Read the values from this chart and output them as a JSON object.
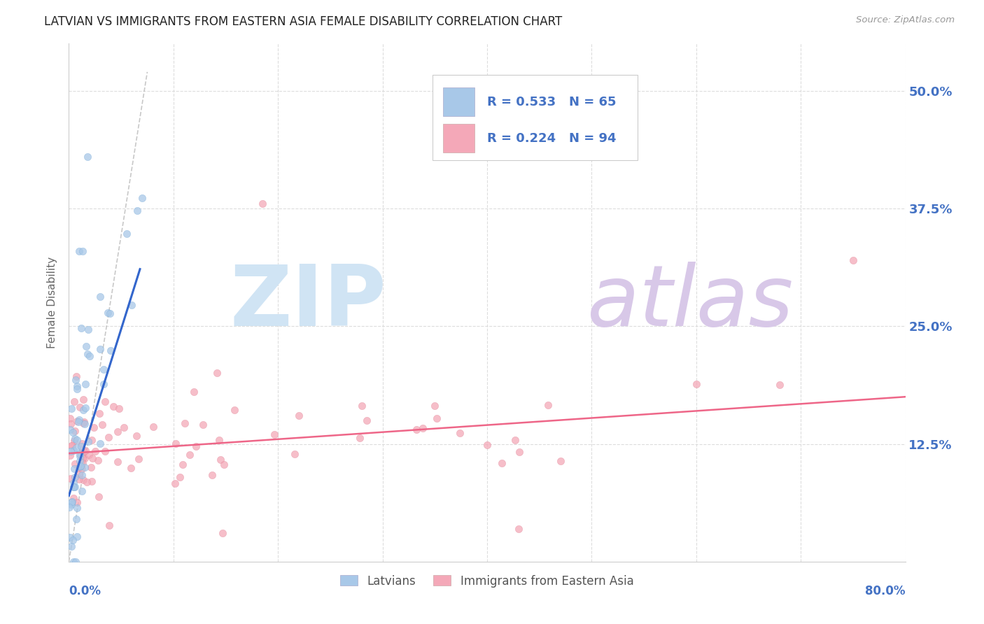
{
  "title": "LATVIAN VS IMMIGRANTS FROM EASTERN ASIA FEMALE DISABILITY CORRELATION CHART",
  "source": "Source: ZipAtlas.com",
  "ylabel": "Female Disability",
  "ytick_labels": [
    "",
    "12.5%",
    "25.0%",
    "37.5%",
    "50.0%"
  ],
  "xlim": [
    0.0,
    0.8
  ],
  "ylim": [
    0.0,
    0.55
  ],
  "legend_blue_R": "R = 0.533",
  "legend_blue_N": "N = 65",
  "legend_pink_R": "R = 0.224",
  "legend_pink_N": "N = 94",
  "legend_label_blue": "Latvians",
  "legend_label_pink": "Immigrants from Eastern Asia",
  "blue_color": "#a8c8e8",
  "pink_color": "#f4a8b8",
  "blue_line_color": "#3366cc",
  "pink_line_color": "#ee6688",
  "dash_line_color": "#bbbbbb",
  "title_color": "#222222",
  "axis_label_color": "#4472c4",
  "n_color": "#44bb44",
  "grid_color": "#dddddd",
  "watermark_zip_color": "#d0e4f4",
  "watermark_atlas_color": "#d8c8e8"
}
